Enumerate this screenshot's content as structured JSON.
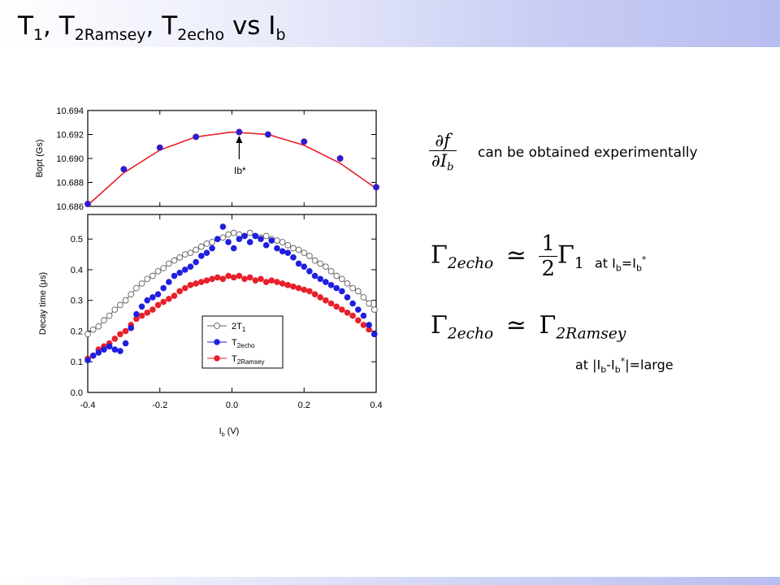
{
  "title": {
    "T1": "T",
    "s1": "1",
    "comma1": ", T",
    "s2": "2Ramsey",
    "comma2": ", T",
    "s3": "2echo",
    "vs": " vs I",
    "s4": "b"
  },
  "annotations": {
    "dfdIb_num": "∂f",
    "dfdIb_den": "∂I",
    "dfdIb_den_sub": "b",
    "obtained": "can be obtained experimentally",
    "eq1_lhs": "Γ",
    "eq1_lhs_sub": "2echo",
    "eq1_rel": "≃",
    "eq1_num": "1",
    "eq1_den": "2",
    "eq1_rhs": "Γ",
    "eq1_rhs_sub": "1",
    "at_opt_prefix": "at I",
    "at_opt_sub1": "b",
    "at_opt_mid": "=I",
    "at_opt_sub2": "b",
    "at_opt_sup": "*",
    "eq2_lhs": "Γ",
    "eq2_lhs_sub": "2echo",
    "eq2_rel": "≃",
    "eq2_rhs": "Γ",
    "eq2_rhs_sub": "2Ramsey",
    "at_large_prefix": "at |I",
    "at_large_sub1": "b",
    "at_large_mid": "-I",
    "at_large_sub2": "b",
    "at_large_sup": "*",
    "at_large_suffix": "|=large"
  },
  "colors": {
    "red": "#e8202a",
    "blue": "#1f1fe0",
    "marker_outline": "#6a1a9a",
    "gray_open": "#606060"
  },
  "chart_data": [
    {
      "type": "scatter",
      "title": "",
      "xlabel": "",
      "ylabel": "Bopt (Gs)",
      "xlim": [
        -0.4,
        0.4
      ],
      "ylim": [
        10.686,
        10.694
      ],
      "yticks": [
        "10.686",
        "10.688",
        "10.690",
        "10.692",
        "10.694"
      ],
      "annotation": "Ib*",
      "series": [
        {
          "style": "points",
          "color": "#1f1fe0",
          "x": [
            -0.4,
            -0.3,
            -0.2,
            -0.1,
            0.02,
            0.1,
            0.2,
            0.3,
            0.4
          ],
          "y": [
            10.6862,
            10.6891,
            10.6909,
            10.6918,
            10.6922,
            10.692,
            10.6914,
            10.69,
            10.6876
          ]
        },
        {
          "style": "fit-line",
          "color": "#e8202a",
          "x": [
            -0.4,
            -0.3,
            -0.2,
            -0.1,
            0.0,
            0.1,
            0.2,
            0.3,
            0.4
          ],
          "y": [
            10.6861,
            10.6888,
            10.6907,
            10.6918,
            10.6922,
            10.692,
            10.6911,
            10.6896,
            10.6875
          ]
        }
      ]
    },
    {
      "type": "scatter",
      "title": "",
      "xlabel": "I",
      "xlabel_sub": "b",
      "xlabel_unit": " (V)",
      "ylabel": "Decay time (μs)",
      "xlim": [
        -0.4,
        0.4
      ],
      "ylim": [
        0.0,
        0.58
      ],
      "xticks": [
        "-0.4",
        "-0.2",
        "0.0",
        "0.2",
        "0.4"
      ],
      "yticks": [
        "0.0",
        "0.1",
        "0.2",
        "0.3",
        "0.4",
        "0.5"
      ],
      "legend_placement": "lower-left",
      "series": [
        {
          "name": "2T",
          "name_sub": "1",
          "style": "open-circles-line",
          "color": "#606060",
          "x": [
            -0.4,
            -0.385,
            -0.37,
            -0.355,
            -0.34,
            -0.325,
            -0.31,
            -0.295,
            -0.28,
            -0.265,
            -0.25,
            -0.235,
            -0.22,
            -0.205,
            -0.19,
            -0.175,
            -0.16,
            -0.145,
            -0.13,
            -0.115,
            -0.1,
            -0.085,
            -0.07,
            -0.055,
            -0.04,
            -0.025,
            -0.01,
            0.005,
            0.02,
            0.035,
            0.05,
            0.065,
            0.08,
            0.095,
            0.11,
            0.125,
            0.14,
            0.155,
            0.17,
            0.185,
            0.2,
            0.215,
            0.23,
            0.245,
            0.26,
            0.275,
            0.29,
            0.305,
            0.32,
            0.335,
            0.35,
            0.365,
            0.38,
            0.395
          ],
          "y": [
            0.19,
            0.205,
            0.215,
            0.235,
            0.25,
            0.27,
            0.285,
            0.3,
            0.32,
            0.34,
            0.355,
            0.37,
            0.38,
            0.395,
            0.405,
            0.42,
            0.43,
            0.44,
            0.45,
            0.455,
            0.465,
            0.475,
            0.485,
            0.49,
            0.5,
            0.505,
            0.515,
            0.52,
            0.515,
            0.51,
            0.52,
            0.51,
            0.505,
            0.51,
            0.5,
            0.495,
            0.49,
            0.48,
            0.47,
            0.465,
            0.455,
            0.445,
            0.43,
            0.42,
            0.41,
            0.395,
            0.38,
            0.37,
            0.355,
            0.34,
            0.33,
            0.31,
            0.29,
            0.27
          ]
        },
        {
          "name": "T",
          "name_sub": "2echo",
          "style": "points",
          "color": "#1f1fe0",
          "x": [
            -0.4,
            -0.385,
            -0.37,
            -0.355,
            -0.34,
            -0.325,
            -0.31,
            -0.295,
            -0.28,
            -0.265,
            -0.25,
            -0.235,
            -0.22,
            -0.205,
            -0.19,
            -0.175,
            -0.16,
            -0.145,
            -0.13,
            -0.115,
            -0.1,
            -0.085,
            -0.07,
            -0.055,
            -0.04,
            -0.025,
            -0.01,
            0.005,
            0.02,
            0.035,
            0.05,
            0.065,
            0.08,
            0.095,
            0.11,
            0.125,
            0.14,
            0.155,
            0.17,
            0.185,
            0.2,
            0.215,
            0.23,
            0.245,
            0.26,
            0.275,
            0.29,
            0.305,
            0.32,
            0.335,
            0.35,
            0.365,
            0.38,
            0.395
          ],
          "y": [
            0.105,
            0.12,
            0.13,
            0.14,
            0.15,
            0.14,
            0.135,
            0.16,
            0.21,
            0.255,
            0.28,
            0.3,
            0.31,
            0.32,
            0.34,
            0.36,
            0.38,
            0.39,
            0.4,
            0.41,
            0.425,
            0.445,
            0.455,
            0.47,
            0.5,
            0.54,
            0.49,
            0.47,
            0.5,
            0.51,
            0.49,
            0.51,
            0.5,
            0.48,
            0.495,
            0.47,
            0.46,
            0.455,
            0.44,
            0.42,
            0.41,
            0.395,
            0.38,
            0.37,
            0.36,
            0.35,
            0.34,
            0.33,
            0.31,
            0.29,
            0.27,
            0.25,
            0.22,
            0.19
          ]
        },
        {
          "name": "T",
          "name_sub": "2Ramsey",
          "style": "points",
          "color": "#e8202a",
          "x": [
            -0.4,
            -0.385,
            -0.37,
            -0.355,
            -0.34,
            -0.325,
            -0.31,
            -0.295,
            -0.28,
            -0.265,
            -0.25,
            -0.235,
            -0.22,
            -0.205,
            -0.19,
            -0.175,
            -0.16,
            -0.145,
            -0.13,
            -0.115,
            -0.1,
            -0.085,
            -0.07,
            -0.055,
            -0.04,
            -0.025,
            -0.01,
            0.005,
            0.02,
            0.035,
            0.05,
            0.065,
            0.08,
            0.095,
            0.11,
            0.125,
            0.14,
            0.155,
            0.17,
            0.185,
            0.2,
            0.215,
            0.23,
            0.245,
            0.26,
            0.275,
            0.29,
            0.305,
            0.32,
            0.335,
            0.35,
            0.365,
            0.38,
            0.395
          ],
          "y": [
            0.11,
            0.12,
            0.14,
            0.15,
            0.16,
            0.175,
            0.19,
            0.2,
            0.22,
            0.24,
            0.25,
            0.26,
            0.27,
            0.285,
            0.295,
            0.305,
            0.315,
            0.33,
            0.34,
            0.35,
            0.355,
            0.36,
            0.365,
            0.37,
            0.375,
            0.37,
            0.38,
            0.375,
            0.38,
            0.37,
            0.375,
            0.365,
            0.37,
            0.36,
            0.365,
            0.36,
            0.355,
            0.35,
            0.345,
            0.34,
            0.335,
            0.33,
            0.32,
            0.31,
            0.3,
            0.29,
            0.28,
            0.27,
            0.26,
            0.25,
            0.235,
            0.22,
            0.205,
            0.19
          ]
        }
      ]
    }
  ]
}
